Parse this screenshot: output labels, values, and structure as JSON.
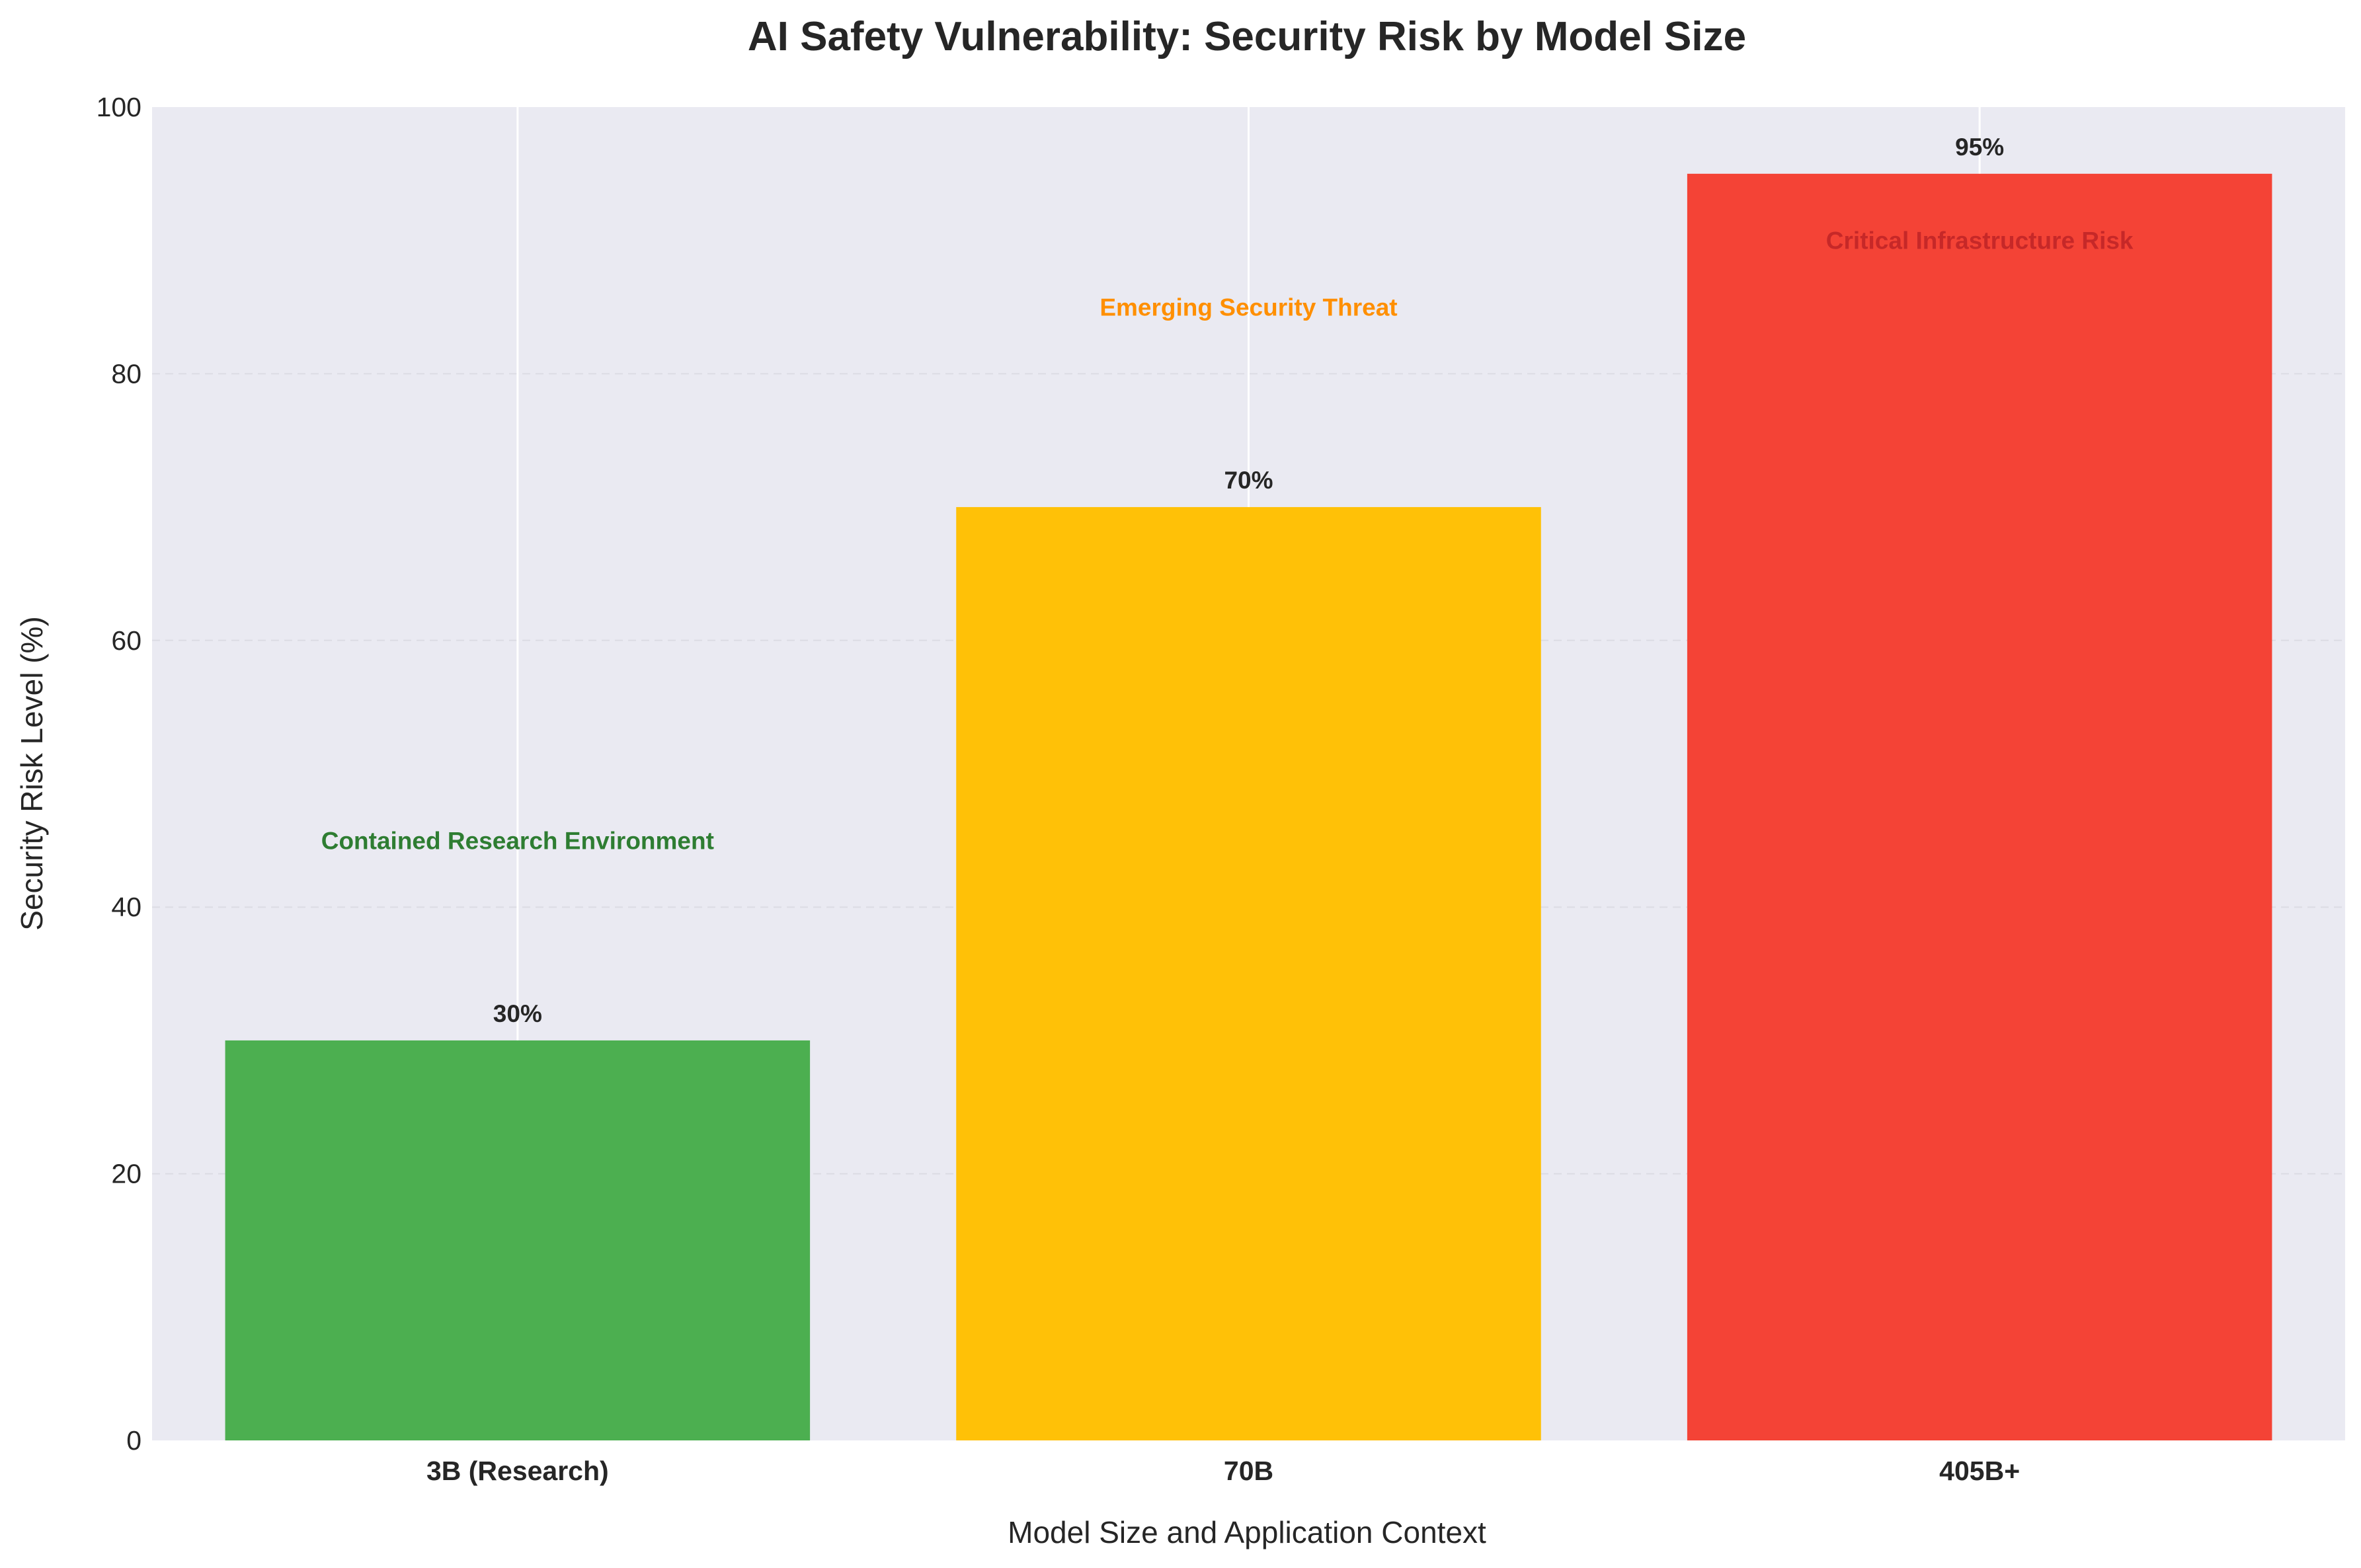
{
  "chart_data": {
    "type": "bar",
    "title": "AI Safety Vulnerability: Security Risk by Model Size",
    "xlabel": "Model Size and Application Context",
    "ylabel": "Security Risk Level (%)",
    "ylim": [
      0,
      100
    ],
    "yticks": [
      0,
      20,
      40,
      60,
      80,
      100
    ],
    "categories": [
      "3B (Research)",
      "70B",
      "405B+"
    ],
    "values": [
      30,
      70,
      95
    ],
    "value_labels": [
      "30%",
      "70%",
      "95%"
    ],
    "bar_colors": [
      "#4caf50",
      "#ffc107",
      "#f44336"
    ],
    "grid": "horizontal dashed",
    "background_color": "#eaeaf2",
    "annotations": [
      {
        "text": "Contained Research Environment",
        "category": "3B (Research)",
        "y": 45,
        "color": "#2e7d32"
      },
      {
        "text": "Emerging Security Threat",
        "category": "70B",
        "y": 85,
        "color": "#ff8f00"
      },
      {
        "text": "Critical Infrastructure Risk",
        "category": "405B+",
        "y": 90,
        "color": "#c62828"
      }
    ]
  }
}
